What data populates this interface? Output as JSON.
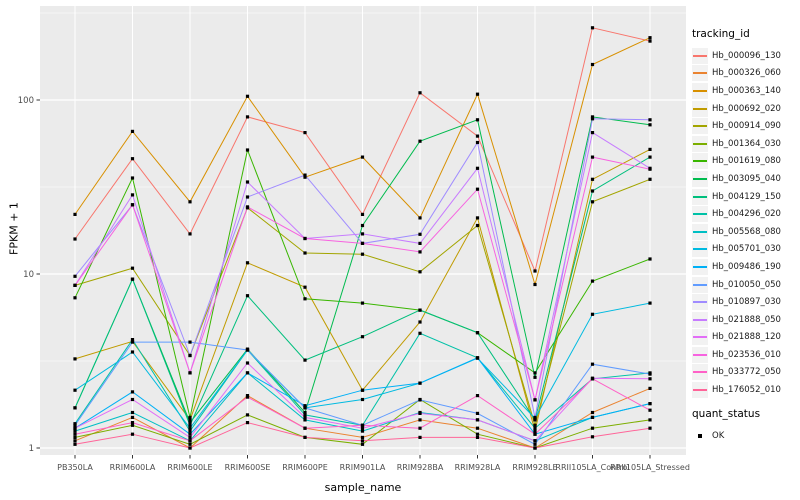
{
  "chart_data": {
    "type": "line",
    "title": "",
    "xlabel": "sample_name",
    "ylabel": "FPKM + 1",
    "yscale": "log10",
    "ylim": [
      0.95,
      350
    ],
    "yticks": [
      1,
      10,
      100
    ],
    "grid": "on",
    "legend_position": "right",
    "categories": [
      "PB350LA",
      "RRIM600LA",
      "RRIM600LE",
      "RRIM600SE",
      "RRIM600PE",
      "RRIM901LA",
      "RRIM928BA",
      "RRIM928LA",
      "RRIM928LE",
      "RRII105LA_Control",
      "RRII105LA_Stressed"
    ],
    "series": [
      {
        "name": "Hb_000096_130",
        "color": "#F8766D",
        "values": [
          15.9,
          46,
          17,
          80,
          65,
          22,
          110,
          62,
          10.4,
          260,
          218
        ]
      },
      {
        "name": "Hb_000326_060",
        "color": "#EA8331",
        "values": [
          1.1,
          1.5,
          1.0,
          2.0,
          1.3,
          1.15,
          1.45,
          1.3,
          1.0,
          1.6,
          2.2
        ]
      },
      {
        "name": "Hb_000363_140",
        "color": "#D89000",
        "values": [
          22,
          66,
          26,
          105,
          36,
          47,
          21,
          108,
          8.7,
          160,
          228
        ]
      },
      {
        "name": "Hb_000692_020",
        "color": "#C09B00",
        "values": [
          3.25,
          4.1,
          1.45,
          11.6,
          8.4,
          2.15,
          5.3,
          21,
          1.25,
          35,
          52
        ]
      },
      {
        "name": "Hb_000914_090",
        "color": "#A3A500",
        "values": [
          8.6,
          10.8,
          3.4,
          24,
          13.2,
          13,
          10.3,
          19,
          1.35,
          26,
          35
        ]
      },
      {
        "name": "Hb_001364_030",
        "color": "#7CAE00",
        "values": [
          1.15,
          1.35,
          1.05,
          1.55,
          1.15,
          1.05,
          1.9,
          1.2,
          1.0,
          1.3,
          1.45
        ]
      },
      {
        "name": "Hb_001619_080",
        "color": "#39B600",
        "values": [
          7.3,
          35.6,
          1.5,
          51.6,
          7.2,
          6.8,
          6.2,
          4.6,
          2.7,
          9.1,
          12.2
        ]
      },
      {
        "name": "Hb_003095_040",
        "color": "#00BB4E",
        "values": [
          1.7,
          9.35,
          1.4,
          3.7,
          1.6,
          19,
          58,
          77,
          2.55,
          80,
          72
        ]
      },
      {
        "name": "Hb_004129_150",
        "color": "#00BF7D",
        "values": [
          1.7,
          9.35,
          1.35,
          7.5,
          3.2,
          4.36,
          6.2,
          4.6,
          1.45,
          30,
          47
        ]
      },
      {
        "name": "Hb_004296_020",
        "color": "#00C1A7",
        "values": [
          1.38,
          4.2,
          1.25,
          3.66,
          1.55,
          1.35,
          4.56,
          3.3,
          1.3,
          2.5,
          2.7
        ]
      },
      {
        "name": "Hb_005568_080",
        "color": "#00BFC4",
        "values": [
          1.25,
          1.6,
          1.1,
          2.7,
          1.45,
          1.25,
          1.6,
          1.45,
          1.1,
          1.5,
          1.8
        ]
      },
      {
        "name": "Hb_005701_030",
        "color": "#00BAE0",
        "values": [
          2.15,
          3.56,
          1.3,
          3.66,
          1.7,
          1.9,
          2.36,
          3.28,
          1.48,
          5.87,
          6.8
        ]
      },
      {
        "name": "Hb_009486_190",
        "color": "#00B0F6",
        "values": [
          1.3,
          2.1,
          1.2,
          2.7,
          1.75,
          2.15,
          2.36,
          3.3,
          1.2,
          1.5,
          1.8
        ]
      },
      {
        "name": "Hb_010050_050",
        "color": "#619CFF",
        "values": [
          1.35,
          4.06,
          4.06,
          3.66,
          1.7,
          1.35,
          1.89,
          1.58,
          1.05,
          3.03,
          2.66
        ]
      },
      {
        "name": "Hb_010897_030",
        "color": "#A08CFF",
        "values": [
          9.7,
          25,
          3.4,
          27.7,
          37,
          15,
          16.9,
          57,
          1.5,
          78,
          77
        ]
      },
      {
        "name": "Hb_021888_050",
        "color": "#C77CFF",
        "values": [
          8.6,
          28.5,
          2.7,
          33.8,
          16,
          17,
          15,
          40.5,
          1.89,
          65,
          40.5
        ]
      },
      {
        "name": "Hb_021888_120",
        "color": "#E26EF7",
        "values": [
          1.3,
          1.9,
          1.15,
          3.08,
          1.5,
          1.3,
          1.58,
          1.45,
          1.1,
          2.52,
          2.5
        ]
      },
      {
        "name": "Hb_023536_010",
        "color": "#F763E0",
        "values": [
          8.6,
          25,
          2.7,
          24.3,
          16,
          15,
          13.4,
          30.7,
          1.89,
          47,
          40
        ]
      },
      {
        "name": "Hb_033772_050",
        "color": "#FF61C7",
        "values": [
          1.2,
          1.4,
          1.1,
          1.96,
          1.3,
          1.35,
          1.3,
          2.0,
          1.2,
          2.5,
          1.65
        ]
      },
      {
        "name": "Hb_176052_010",
        "color": "#FF6599",
        "values": [
          1.05,
          1.2,
          1.0,
          1.4,
          1.15,
          1.1,
          1.15,
          1.15,
          1.0,
          1.16,
          1.3
        ]
      }
    ]
  },
  "legend": {
    "tracking_title": "tracking_id",
    "quant_title": "quant_status",
    "quant_items": [
      {
        "label": "OK"
      }
    ]
  },
  "style": {
    "panel_bg": "#EBEBEB",
    "grid_color": "#FFFFFF",
    "tick_text_color": "#4D4D4D",
    "point_color": "#000000"
  }
}
